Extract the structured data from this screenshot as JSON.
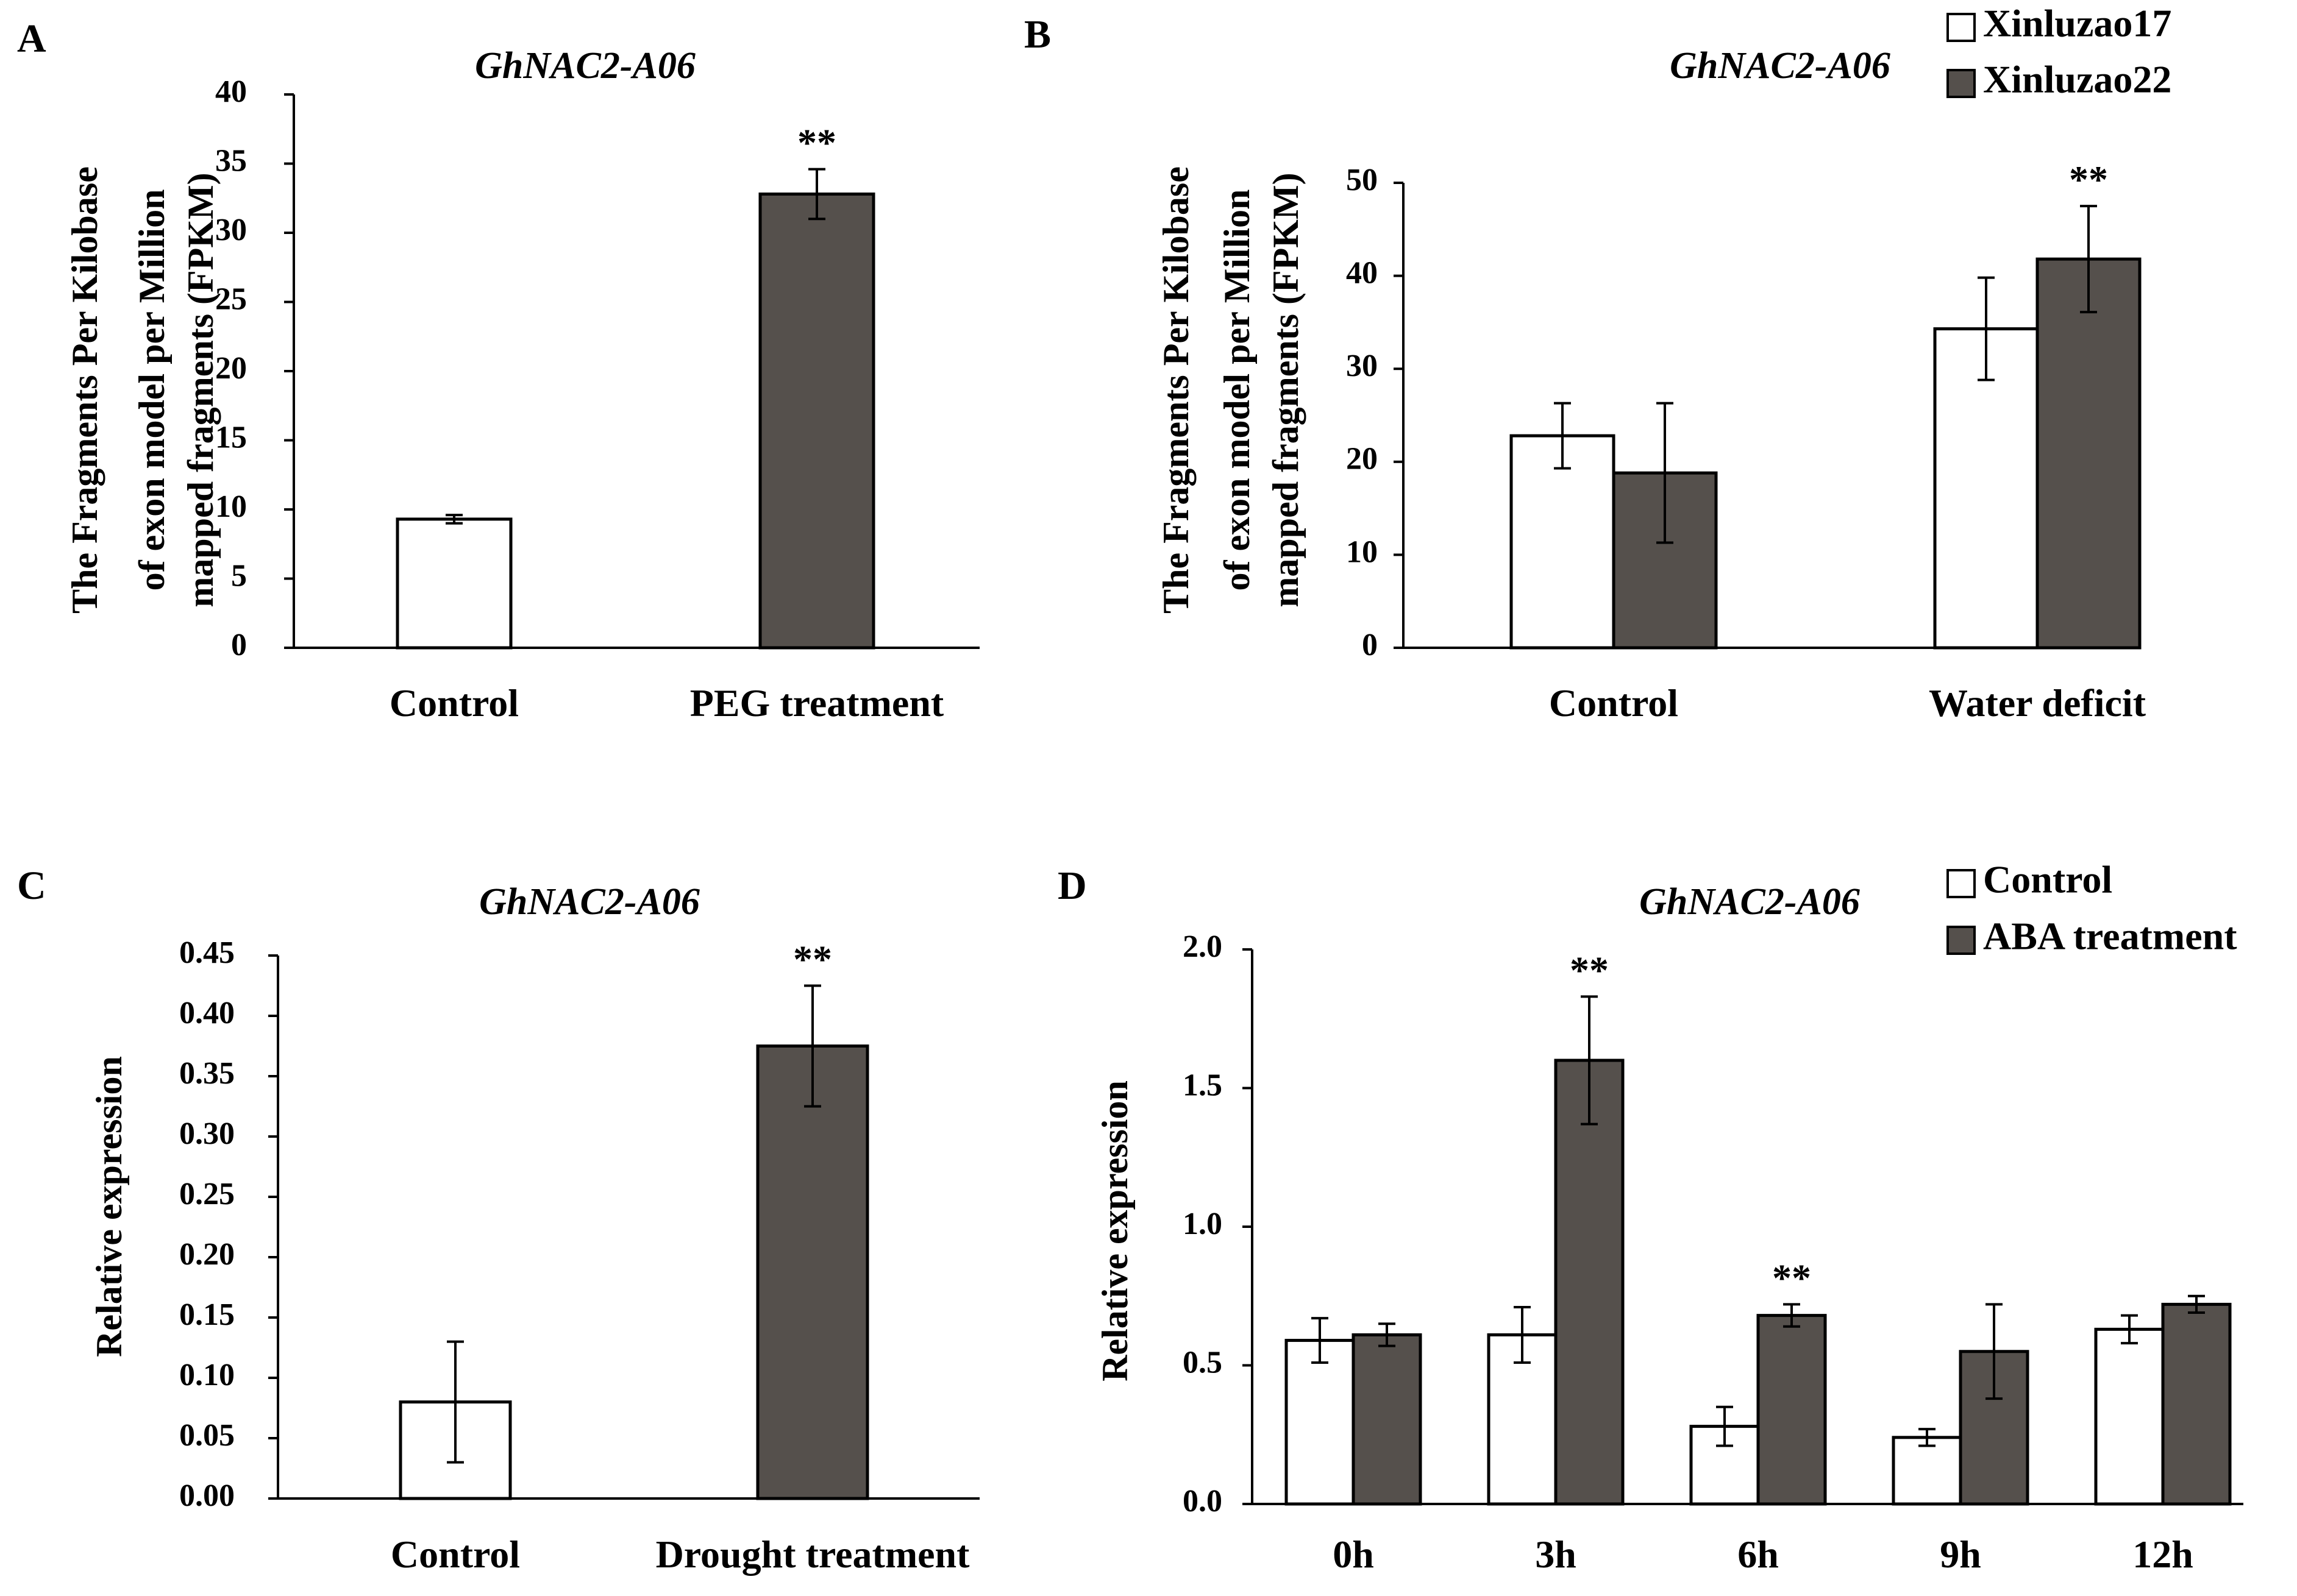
{
  "chart_data": [
    {
      "panel": "A",
      "type": "bar",
      "title": "GhNAC2-A06",
      "ylabel": [
        "The  Fragments Per Kilobase",
        "of exon model per Million",
        "mapped fragments (FPKM)"
      ],
      "categories": [
        "Control",
        "PEG treatment"
      ],
      "ylim": [
        0,
        40
      ],
      "yticks": [
        "0",
        "5",
        "10",
        "15",
        "20",
        "25",
        "30",
        "35",
        "40"
      ],
      "series": [
        {
          "name": "",
          "color": "#55504c",
          "values": [
            9.3,
            32.8
          ],
          "errors": [
            0.3,
            1.8
          ],
          "colors": [
            "#ffffff",
            "#55504c"
          ]
        }
      ],
      "annotations": [
        {
          "category": 1,
          "series": 0,
          "text": "**"
        }
      ],
      "legend": []
    },
    {
      "panel": "B",
      "type": "bar",
      "title": "GhNAC2-A06",
      "ylabel": [
        "The  Fragments Per Kilobase",
        "of exon model per Million",
        "mapped fragments (FPKM)"
      ],
      "categories": [
        "Control",
        "Water deficit"
      ],
      "ylim": [
        0,
        50
      ],
      "yticks": [
        "0",
        "10",
        "20",
        "30",
        "40",
        "50"
      ],
      "series": [
        {
          "name": "Xinluzao17",
          "color": "#ffffff",
          "values": [
            22.8,
            34.3
          ],
          "errors": [
            3.5,
            5.5
          ]
        },
        {
          "name": "Xinluzao22",
          "color": "#55504c",
          "values": [
            18.8,
            41.8
          ],
          "errors": [
            7.5,
            5.7
          ]
        }
      ],
      "annotations": [
        {
          "category": 1,
          "series": 1,
          "text": "**"
        }
      ],
      "legend": [
        "Xinluzao17",
        "Xinluzao22"
      ]
    },
    {
      "panel": "C",
      "type": "bar",
      "title": "GhNAC2-A06",
      "ylabel": [
        "Relative expression"
      ],
      "categories": [
        "Control",
        "Drought treatment"
      ],
      "ylim": [
        0,
        0.45
      ],
      "yticks": [
        "0.00",
        "0.05",
        "0.10",
        "0.15",
        "0.20",
        "0.25",
        "0.30",
        "0.35",
        "0.40",
        "0.45"
      ],
      "series": [
        {
          "name": "",
          "color": "#55504c",
          "values": [
            0.08,
            0.375
          ],
          "errors": [
            0.05,
            0.05
          ],
          "colors": [
            "#ffffff",
            "#55504c"
          ]
        }
      ],
      "annotations": [
        {
          "category": 1,
          "series": 0,
          "text": "**"
        }
      ],
      "legend": []
    },
    {
      "panel": "D",
      "type": "bar",
      "title": "GhNAC2-A06",
      "ylabel": [
        "Relative expression"
      ],
      "categories": [
        "0h",
        "3h",
        "6h",
        "9h",
        "12h"
      ],
      "ylim": [
        0,
        2.0
      ],
      "yticks": [
        "0.0",
        "0.5",
        "1.0",
        "1.5",
        "2.0"
      ],
      "series": [
        {
          "name": "Control",
          "color": "#ffffff",
          "values": [
            0.59,
            0.61,
            0.28,
            0.24,
            0.63
          ],
          "errors": [
            0.08,
            0.1,
            0.07,
            0.03,
            0.05
          ]
        },
        {
          "name": "ABA treatment",
          "color": "#55504c",
          "values": [
            0.61,
            1.6,
            0.68,
            0.55,
            0.72
          ],
          "errors": [
            0.04,
            0.23,
            0.04,
            0.17,
            0.03
          ]
        }
      ],
      "annotations": [
        {
          "category": 1,
          "series": 1,
          "text": "**"
        },
        {
          "category": 2,
          "series": 1,
          "text": "**"
        }
      ],
      "legend": [
        "Control",
        "ABA treatment"
      ]
    }
  ]
}
